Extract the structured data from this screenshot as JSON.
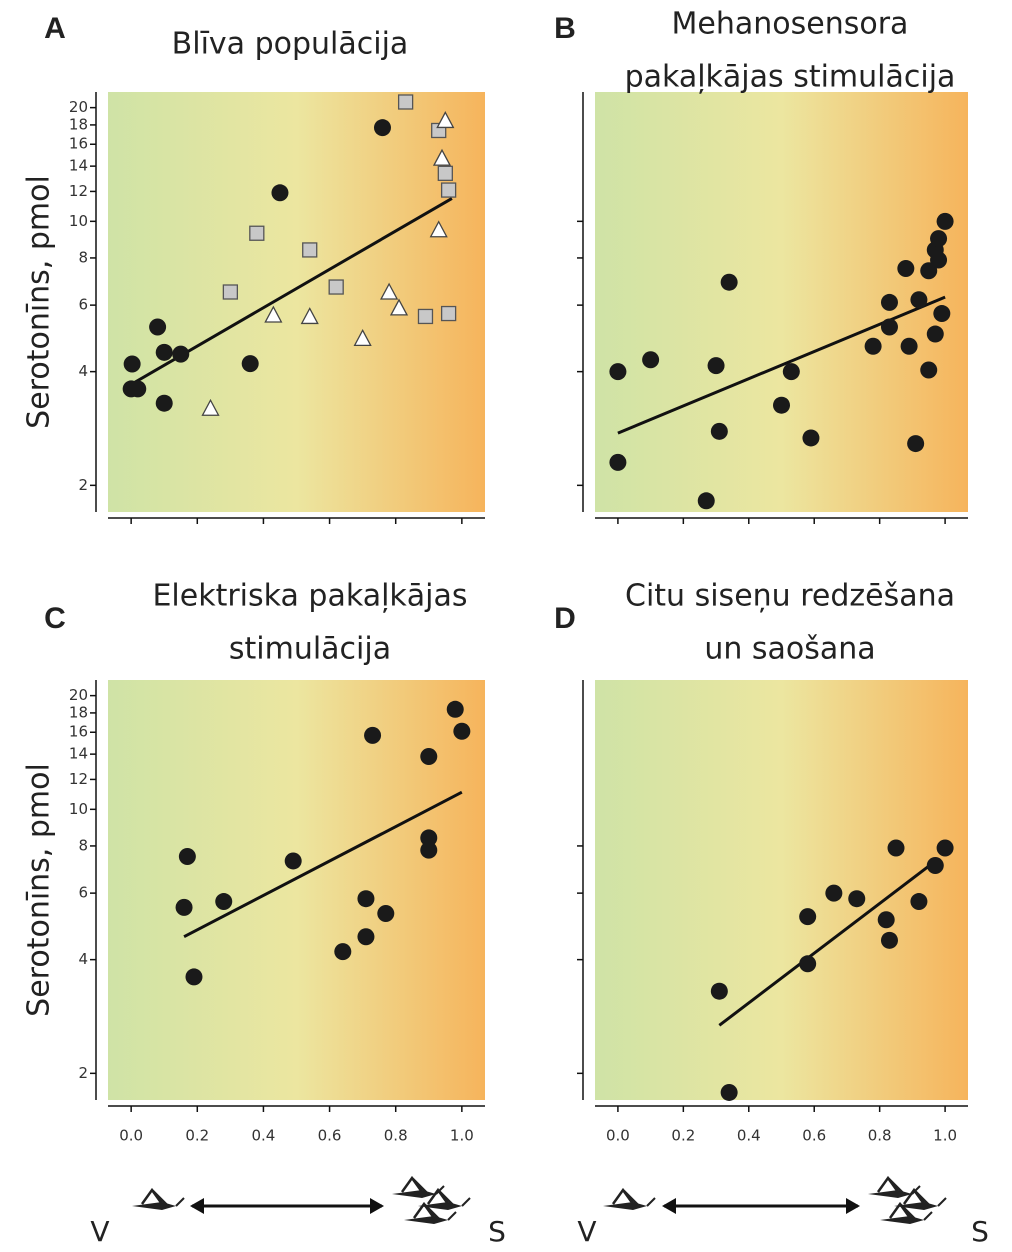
{
  "chart_data": [
    {
      "type": "scatter",
      "panel": "A",
      "title": [
        "Blīva populācija"
      ],
      "ylabel": "Serotonīns, pmol",
      "ylog": true,
      "ylim": [
        1.7,
        22
      ],
      "yticks": [
        2,
        4,
        6,
        8,
        10,
        12,
        14,
        16,
        18,
        20
      ],
      "show_ytick_labels": true,
      "xlim": [
        -0.07,
        1.07
      ],
      "xticks": [
        0,
        0.2,
        0.4,
        0.6,
        0.8,
        1
      ],
      "show_xtick_labels": false,
      "series": [
        {
          "marker": "circle",
          "color": "#1a1a1a",
          "x": [
            0.003,
            0,
            0.02,
            0.08,
            0.1,
            0.1,
            0.15,
            0.36,
            0.45,
            0.76
          ],
          "values": [
            4.19,
            3.6,
            3.6,
            5.25,
            4.5,
            3.3,
            4.45,
            4.2,
            11.9,
            17.7
          ]
        },
        {
          "marker": "square",
          "color": "#c8c8c8",
          "x": [
            0.3,
            0.38,
            0.54,
            0.62,
            0.83,
            0.93,
            0.95,
            0.96,
            0.89,
            0.96
          ],
          "values": [
            6.5,
            9.3,
            8.4,
            6.7,
            20.7,
            17.4,
            13.4,
            12.1,
            5.6,
            5.7
          ]
        },
        {
          "marker": "triangle",
          "color": "#ffffff",
          "x": [
            0.24,
            0.43,
            0.54,
            0.7,
            0.78,
            0.81,
            0.93,
            0.94,
            0.95
          ],
          "values": [
            3.2,
            5.65,
            5.6,
            4.9,
            6.5,
            5.9,
            9.5,
            14.7,
            18.5
          ]
        }
      ],
      "trend": {
        "x": [
          0,
          0.97
        ],
        "values": [
          3.7,
          11.5
        ]
      }
    },
    {
      "type": "scatter",
      "panel": "B",
      "title": [
        "Mehanosensora",
        "pakaļkājas stimulācija"
      ],
      "ylog": true,
      "ylim": [
        1.7,
        22
      ],
      "yticks": [
        2,
        4,
        6,
        8,
        10
      ],
      "show_ytick_labels": false,
      "xlim": [
        -0.07,
        1.07
      ],
      "xticks": [
        0,
        0.2,
        0.4,
        0.6,
        0.8,
        1
      ],
      "show_xtick_labels": false,
      "series": [
        {
          "marker": "circle",
          "color": "#1a1a1a",
          "x": [
            0,
            0.1,
            0,
            0.27,
            0.3,
            0.34,
            0.31,
            0.5,
            0.53,
            0.59,
            0.78,
            0.83,
            0.83,
            0.88,
            0.89,
            0.91,
            0.92,
            0.95,
            0.95,
            0.97,
            0.97,
            0.98,
            0.98,
            0.99,
            1.0
          ],
          "values": [
            4.0,
            4.3,
            2.3,
            1.82,
            4.15,
            6.9,
            2.78,
            3.26,
            4.0,
            2.67,
            4.67,
            5.25,
            6.1,
            7.5,
            4.67,
            2.58,
            6.2,
            7.4,
            4.04,
            5.03,
            8.4,
            7.9,
            9.0,
            5.7,
            10.0
          ]
        }
      ],
      "trend": {
        "x": [
          0,
          1.0
        ],
        "values": [
          2.75,
          6.3
        ]
      }
    },
    {
      "type": "scatter",
      "panel": "C",
      "title": [
        "Elektriska pakaļkājas",
        "stimulācija"
      ],
      "ylabel": "Serotonīns, pmol",
      "ylog": true,
      "ylim": [
        1.7,
        22
      ],
      "yticks": [
        2,
        4,
        6,
        8,
        10,
        12,
        14,
        16,
        18,
        20
      ],
      "show_ytick_labels": true,
      "xlim": [
        -0.07,
        1.07
      ],
      "xticks": [
        {
          "value": 0,
          "label": "0.0"
        },
        0.2,
        0.4,
        0.6,
        0.8,
        {
          "value": 1,
          "label": "1.0"
        }
      ],
      "show_xtick_labels": true,
      "x_left_label": "V",
      "x_right_label": "S",
      "series": [
        {
          "marker": "circle",
          "color": "#1a1a1a",
          "x": [
            0.17,
            0.16,
            0.19,
            0.28,
            0.49,
            0.64,
            0.71,
            0.71,
            0.77,
            0.73,
            0.9,
            0.9,
            0.9,
            0.98,
            1.0
          ],
          "values": [
            7.5,
            5.5,
            3.6,
            5.7,
            7.3,
            4.2,
            4.6,
            5.8,
            5.3,
            15.7,
            13.8,
            8.4,
            7.8,
            18.4,
            16.1
          ]
        }
      ],
      "trend": {
        "x": [
          0.16,
          1.0
        ],
        "values": [
          4.6,
          11.1
        ]
      }
    },
    {
      "type": "scatter",
      "panel": "D",
      "title": [
        "Citu siseņu redzēšana",
        "un saošana"
      ],
      "ylog": true,
      "ylim": [
        1.7,
        22
      ],
      "yticks": [
        2,
        4,
        6,
        8
      ],
      "show_ytick_labels": false,
      "xlim": [
        -0.07,
        1.07
      ],
      "xticks": [
        {
          "value": 0,
          "label": "0.0"
        },
        0.2,
        0.4,
        0.6,
        0.8,
        {
          "value": 1,
          "label": "1.0"
        }
      ],
      "show_xtick_labels": true,
      "x_left_label": "V",
      "x_right_label": "S",
      "series": [
        {
          "marker": "circle",
          "color": "#1a1a1a",
          "x": [
            0.31,
            0.34,
            0.58,
            0.58,
            0.66,
            0.73,
            0.82,
            0.83,
            0.85,
            0.92,
            0.97,
            1.0
          ],
          "values": [
            3.3,
            1.78,
            3.9,
            5.2,
            6.0,
            5.8,
            5.1,
            4.5,
            7.9,
            5.7,
            7.1,
            7.9
          ]
        }
      ],
      "trend": {
        "x": [
          0.31,
          0.98
        ],
        "values": [
          2.68,
          7.4
        ]
      }
    }
  ]
}
